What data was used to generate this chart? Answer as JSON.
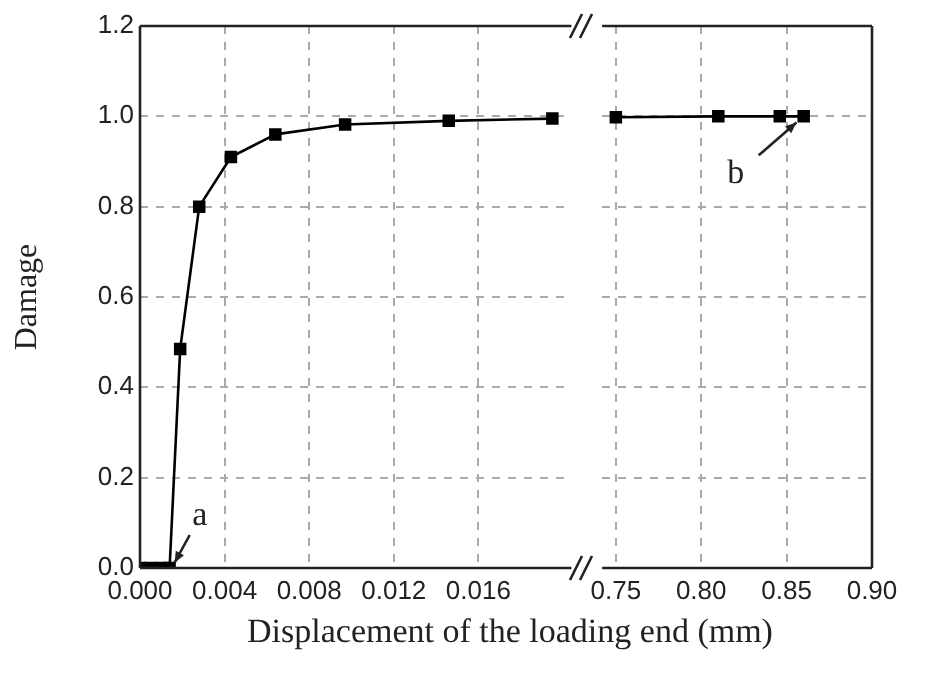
{
  "chart_data": [
    {
      "type": "line",
      "ylabel": "Damage",
      "xlabel": "Displacement of the loading end (mm)",
      "marker": "square",
      "line_style": "solid",
      "grid": true,
      "xlim": [
        0,
        0.0204
      ],
      "xticks": [
        {
          "value": 0,
          "label": "0.000"
        },
        {
          "value": 0.004,
          "label": "0.004"
        },
        {
          "value": 0.008,
          "label": "0.008"
        },
        {
          "value": 0.012,
          "label": "0.012"
        },
        {
          "value": 0.016,
          "label": "0.016"
        }
      ],
      "ylim": [
        0,
        1.2
      ],
      "yticks": [
        {
          "value": 0,
          "label": "0.0"
        },
        {
          "value": 0.2,
          "label": "0.2"
        },
        {
          "value": 0.4,
          "label": "0.4"
        },
        {
          "value": 0.6,
          "label": "0.6"
        },
        {
          "value": 0.8,
          "label": "0.8"
        },
        {
          "value": 1,
          "label": "1.0"
        },
        {
          "value": 1.2,
          "label": "1.2"
        }
      ],
      "series": [
        {
          "color": "#000000",
          "x": [
            0,
            0.0005,
            0.001,
            0.0014,
            0.0019,
            0.0028,
            0.0043,
            0.0064,
            0.0097,
            0.0146,
            0.0195
          ],
          "values": [
            0,
            0,
            0,
            0,
            0.485,
            0.8,
            0.91,
            0.96,
            0.982,
            0.99,
            0.995
          ]
        }
      ],
      "annotations": [
        {
          "text": "a",
          "x": 0.0015,
          "y": 0
        }
      ]
    },
    {
      "type": "line",
      "marker": "square",
      "line_style": "solid",
      "grid": true,
      "tick_labels": "x",
      "xlim": [
        0.742,
        0.9
      ],
      "xticks": [
        {
          "value": 0.75,
          "label": "0.75"
        },
        {
          "value": 0.8,
          "label": "0.80"
        },
        {
          "value": 0.85,
          "label": "0.85"
        },
        {
          "value": 0.9,
          "label": "0.90"
        }
      ],
      "ylim": [
        0,
        1.2
      ],
      "yticks": [
        0,
        0.2,
        0.4,
        0.6,
        0.8,
        1,
        1.2
      ],
      "series": [
        {
          "color": "#000000",
          "x": [
            0.75,
            0.81,
            0.846,
            0.86
          ],
          "values": [
            0.998,
            1,
            1,
            1
          ]
        }
      ],
      "annotations": [
        {
          "text": "b",
          "x": 0.86,
          "y": 1
        }
      ]
    }
  ]
}
